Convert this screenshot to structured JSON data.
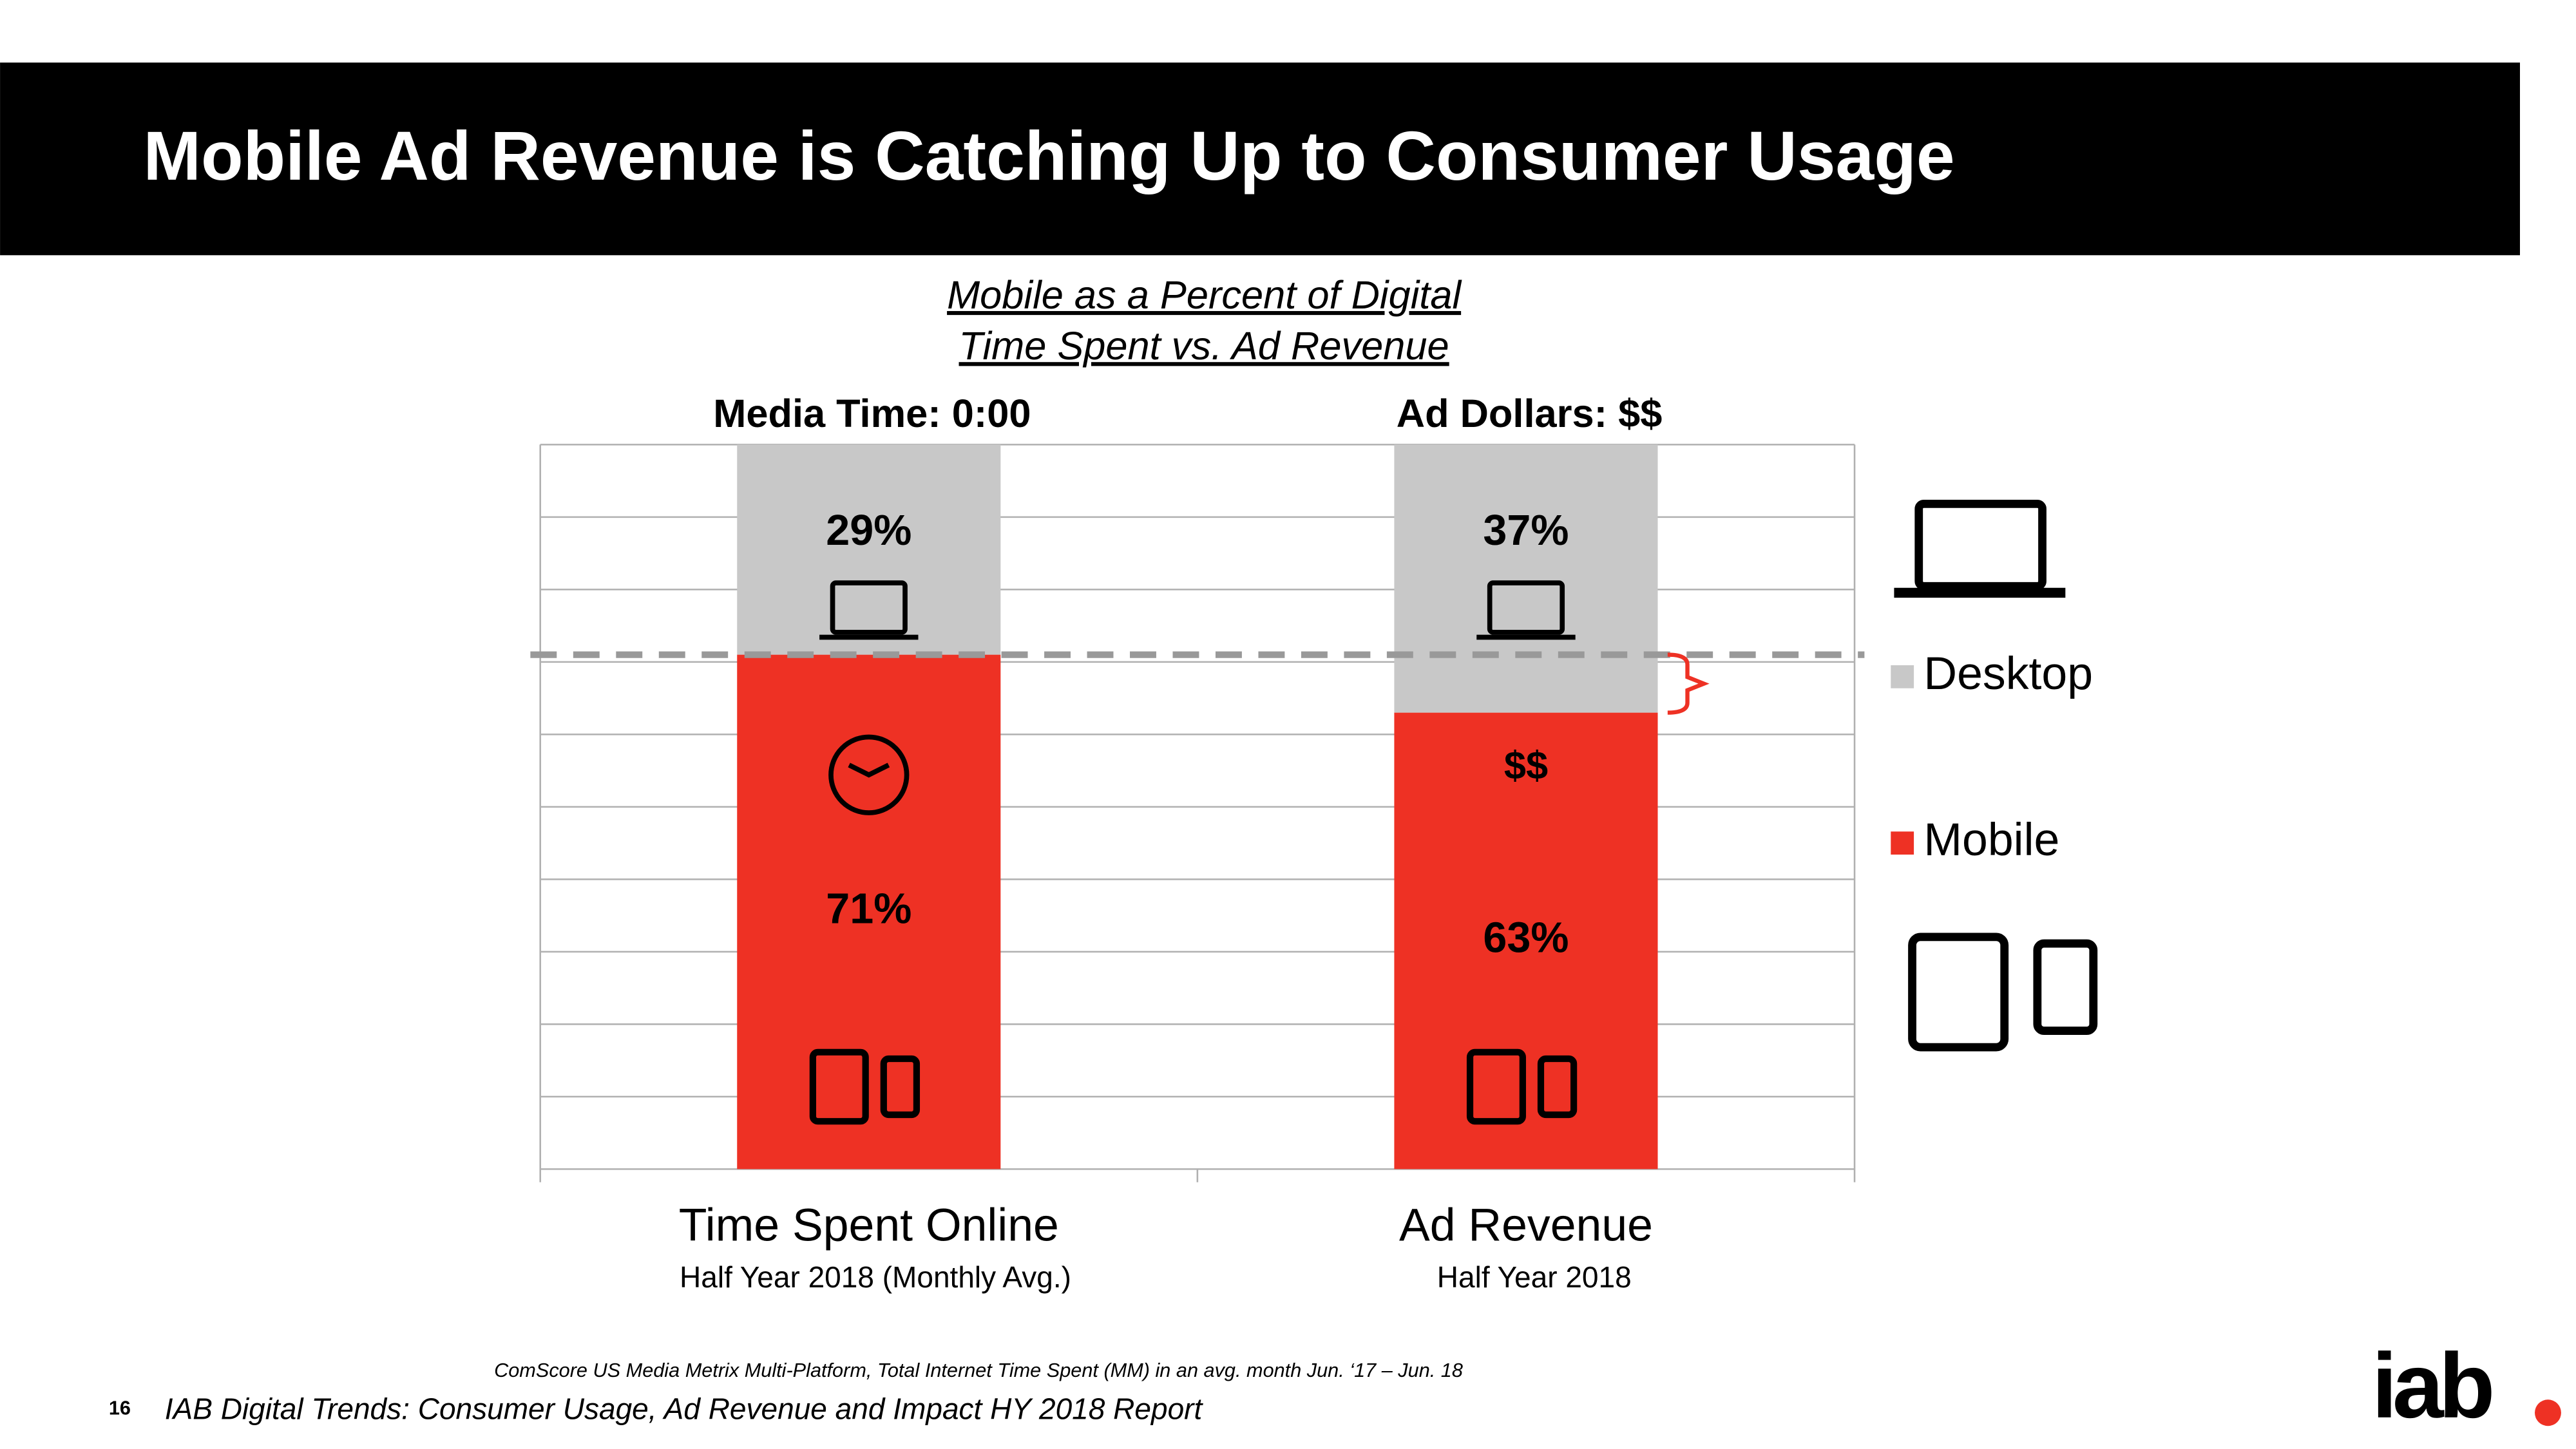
{
  "header": {
    "title": "Mobile Ad Revenue is Catching Up to Consumer Usage"
  },
  "chart_data": {
    "type": "stacked_bar",
    "subtitle": [
      "Mobile as a Percent of Digital",
      "Time Spent vs. Ad Revenue"
    ],
    "column_headers": [
      "Media Time:  0:00",
      "Ad Dollars:  $$"
    ],
    "categories": [
      "Time Spent Online",
      "Ad Revenue"
    ],
    "category_subtitles": [
      "Half Year 2018 (Monthly Avg.)",
      "Half Year 2018"
    ],
    "series": [
      {
        "name": "Mobile",
        "color": "#ee3124",
        "values": [
          71,
          63
        ],
        "value_labels": [
          "71%",
          "63%"
        ]
      },
      {
        "name": "Desktop",
        "color": "#c8c8c8",
        "values": [
          29,
          37
        ],
        "value_labels": [
          "29%",
          "37%"
        ]
      }
    ],
    "bar_annotation": "$$",
    "ylim": [
      0,
      100
    ],
    "yticks": [
      0,
      10,
      20,
      30,
      40,
      50,
      60,
      70,
      80,
      90,
      100
    ],
    "grid": true,
    "tick_labels": false
  },
  "footer": {
    "source": "ComScore US Media Metrix Multi-Platform, Total Internet Time Spent (MM) in an avg. month Jun. ‘17 – Jun. 18",
    "page": 16,
    "report": "IAB Digital Trends:  Consumer Usage, Ad Revenue and Impact HY 2018 Report",
    "logo": "iab"
  }
}
